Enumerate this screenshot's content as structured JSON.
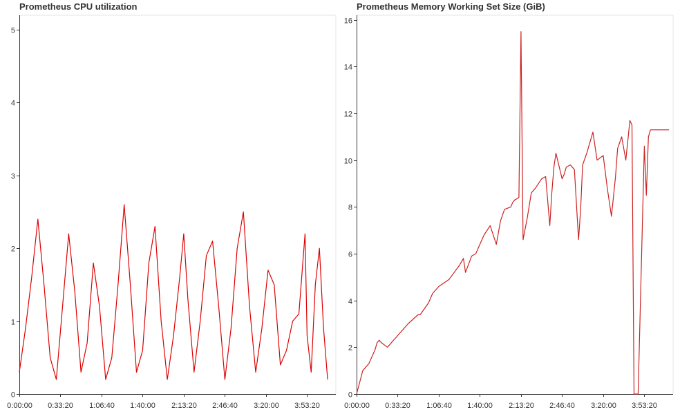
{
  "charts": [
    {
      "title": "Prometheus CPU utilization",
      "yticks": [
        "0",
        "1",
        "2",
        "3",
        "4",
        "5"
      ],
      "xticks": [
        "0:00:00",
        "0:33:20",
        "1:06:40",
        "1:40:00",
        "2:13:20",
        "2:46:40",
        "3:20:00",
        "3:53:20"
      ]
    },
    {
      "title": "Prometheus Memory Working Set Size (GiB)",
      "yticks": [
        "0",
        "2",
        "4",
        "6",
        "8",
        "10",
        "12",
        "14",
        "16"
      ],
      "xticks": [
        "0:00:00",
        "0:33:20",
        "1:06:40",
        "1:40:00",
        "2:13:20",
        "2:46:40",
        "3:20:00",
        "3:53:20"
      ]
    }
  ],
  "chart_data": [
    {
      "type": "line",
      "title": "Prometheus CPU utilization",
      "xlabel": "",
      "ylabel": "",
      "xlim": [
        0,
        15400
      ],
      "ylim": [
        0,
        5.2
      ],
      "x_tick_values": [
        0,
        2000,
        4000,
        6000,
        8000,
        10000,
        12000,
        14000
      ],
      "y_tick_values": [
        0,
        1,
        2,
        3,
        4,
        5
      ],
      "grid": false,
      "legend": "none",
      "series": [
        {
          "color": "#dd0000",
          "x": [
            0,
            300,
            600,
            900,
            1200,
            1500,
            1800,
            2100,
            2400,
            2700,
            3000,
            3300,
            3600,
            3900,
            4200,
            4500,
            4800,
            5100,
            5400,
            5700,
            6000,
            6300,
            6600,
            6900,
            7200,
            7500,
            7800,
            8000,
            8200,
            8500,
            8800,
            9100,
            9400,
            9700,
            10000,
            10300,
            10600,
            10900,
            11200,
            11500,
            11800,
            12100,
            12400,
            12700,
            13000,
            13300,
            13600,
            13900,
            14000,
            14200,
            14400,
            14600,
            14800,
            15000
          ],
          "y": [
            0.3,
            0.9,
            1.6,
            2.4,
            1.5,
            0.5,
            0.2,
            1.2,
            2.2,
            1.4,
            0.3,
            0.7,
            1.8,
            1.2,
            0.2,
            0.5,
            1.5,
            2.6,
            1.5,
            0.3,
            0.6,
            1.8,
            2.3,
            1.0,
            0.2,
            0.8,
            1.6,
            2.2,
            1.3,
            0.3,
            1.0,
            1.9,
            2.1,
            1.2,
            0.2,
            0.9,
            2.0,
            2.5,
            1.2,
            0.3,
            0.9,
            1.7,
            1.5,
            0.4,
            0.6,
            1.0,
            1.1,
            2.2,
            0.8,
            0.3,
            1.5,
            2.0,
            0.9,
            0.2
          ]
        }
      ]
    },
    {
      "type": "line",
      "title": "Prometheus Memory Working Set Size (GiB)",
      "xlabel": "",
      "ylabel": "",
      "xlim": [
        0,
        15400
      ],
      "ylim": [
        0,
        16.2
      ],
      "x_tick_values": [
        0,
        2000,
        4000,
        6000,
        8000,
        10000,
        12000,
        14000
      ],
      "y_tick_values": [
        0,
        2,
        4,
        6,
        8,
        10,
        12,
        14,
        16
      ],
      "grid": false,
      "legend": "none",
      "series": [
        {
          "color": "#cc2222",
          "x": [
            0,
            150,
            300,
            600,
            900,
            1000,
            1100,
            1200,
            1500,
            2000,
            2500,
            3000,
            3100,
            3500,
            3700,
            4000,
            4500,
            5000,
            5200,
            5300,
            5600,
            5800,
            6000,
            6200,
            6500,
            6800,
            7000,
            7200,
            7500,
            7600,
            7700,
            7900,
            8000,
            8100,
            8300,
            8500,
            8700,
            9000,
            9200,
            9400,
            9500,
            9600,
            9700,
            10000,
            10100,
            10200,
            10400,
            10600,
            10800,
            10900,
            11000,
            11200,
            11500,
            11700,
            12000,
            12200,
            12400,
            12600,
            12700,
            12900,
            13100,
            13300,
            13400,
            13500,
            13700,
            14000,
            14100,
            14200,
            14300,
            14400,
            14600,
            14800,
            14900,
            15000,
            15200
          ],
          "y": [
            0.0,
            0.5,
            1.0,
            1.3,
            1.9,
            2.2,
            2.3,
            2.2,
            2.0,
            2.5,
            3.0,
            3.4,
            3.4,
            3.9,
            4.3,
            4.6,
            4.9,
            5.5,
            5.8,
            5.2,
            5.9,
            6.0,
            6.4,
            6.8,
            7.2,
            6.4,
            7.4,
            7.9,
            8.0,
            8.2,
            8.3,
            8.4,
            15.5,
            6.6,
            7.5,
            8.6,
            8.8,
            9.2,
            9.3,
            7.2,
            8.6,
            9.7,
            10.3,
            9.2,
            9.4,
            9.7,
            9.8,
            9.6,
            6.6,
            7.9,
            9.8,
            10.3,
            11.2,
            10.0,
            10.2,
            8.8,
            7.6,
            9.3,
            10.5,
            11.0,
            10.0,
            11.7,
            11.5,
            0.0,
            0.0,
            10.6,
            8.5,
            11.0,
            11.3,
            11.3,
            11.3,
            11.3,
            11.3,
            11.3,
            11.3
          ]
        }
      ]
    }
  ]
}
